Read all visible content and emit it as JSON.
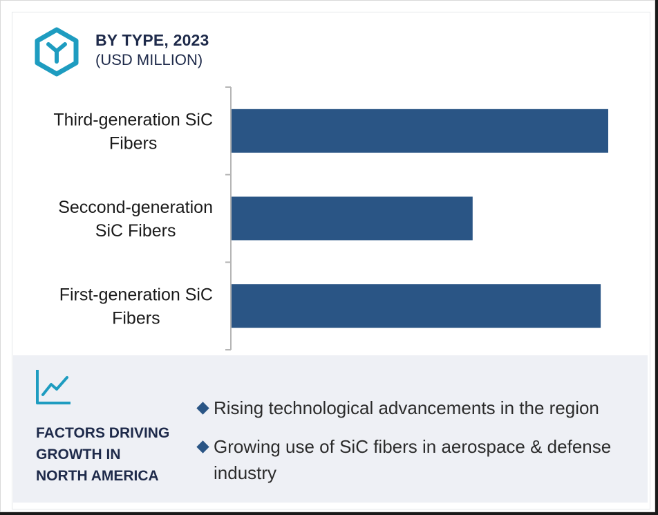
{
  "header": {
    "title": "BY TYPE, 2023",
    "subtitle": "(USD MILLION)",
    "logo_icon": "hexagon-y-icon"
  },
  "colors": {
    "bar": "#2a5585",
    "heading": "#1e2a4a",
    "accent": "#1e9cc0",
    "panel_bg": "#eef0f5"
  },
  "chart_data": {
    "type": "bar",
    "orientation": "horizontal",
    "categories": [
      "Third-generation SiC Fibers",
      "Seccond-generation SiC Fibers",
      "First-generation SiC Fibers"
    ],
    "category_lines": [
      [
        "Third-generation SiC",
        "Fibers"
      ],
      [
        "Seccond-generation",
        "SiC Fibers"
      ],
      [
        "First-generation SiC",
        "Fibers"
      ]
    ],
    "values": [
      100,
      64,
      98
    ],
    "value_axis_shown": false,
    "grid": false
  },
  "factors": {
    "icon": "trend-chart-icon",
    "heading_lines": [
      "FACTORS DRIVING",
      "GROWTH IN",
      "NORTH AMERICA"
    ],
    "bullets": [
      "Rising technological advancements in the region",
      "Growing use of SiC fibers in aerospace & defense industry"
    ]
  }
}
